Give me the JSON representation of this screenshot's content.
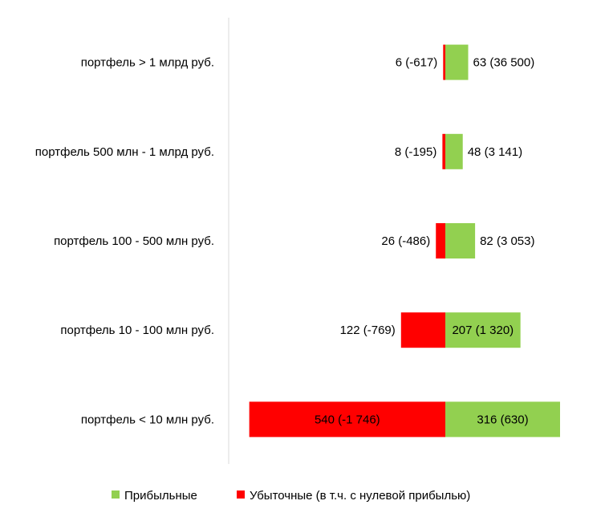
{
  "chart_data": {
    "type": "bar",
    "orientation": "horizontal",
    "stacked": "diverging",
    "categories": [
      "портфель > 1 млрд руб.",
      "портфель 500 млн - 1 млрд руб.",
      "портфель 100 - 500 млн руб.",
      "портфель 10 - 100 млн руб.",
      "портфель < 10 млн руб."
    ],
    "series": [
      {
        "name": "Прибыльные",
        "color": "#92d050",
        "values": [
          63,
          48,
          82,
          207,
          316
        ],
        "labels": [
          "63 (36 500)",
          "48 (3 141)",
          "82 (3 053)",
          "207 (1 320)",
          "316 (630)"
        ]
      },
      {
        "name": "Убыточные (в т.ч. с нулевой прибылью)",
        "color": "#ff0000",
        "values": [
          6,
          8,
          26,
          122,
          540
        ],
        "labels": [
          "6 (-617)",
          "8 (-195)",
          "26 (-486)",
          "122 (-769)",
          "540 (-1 746)"
        ]
      }
    ],
    "legend_position": "bottom",
    "grid": false
  }
}
